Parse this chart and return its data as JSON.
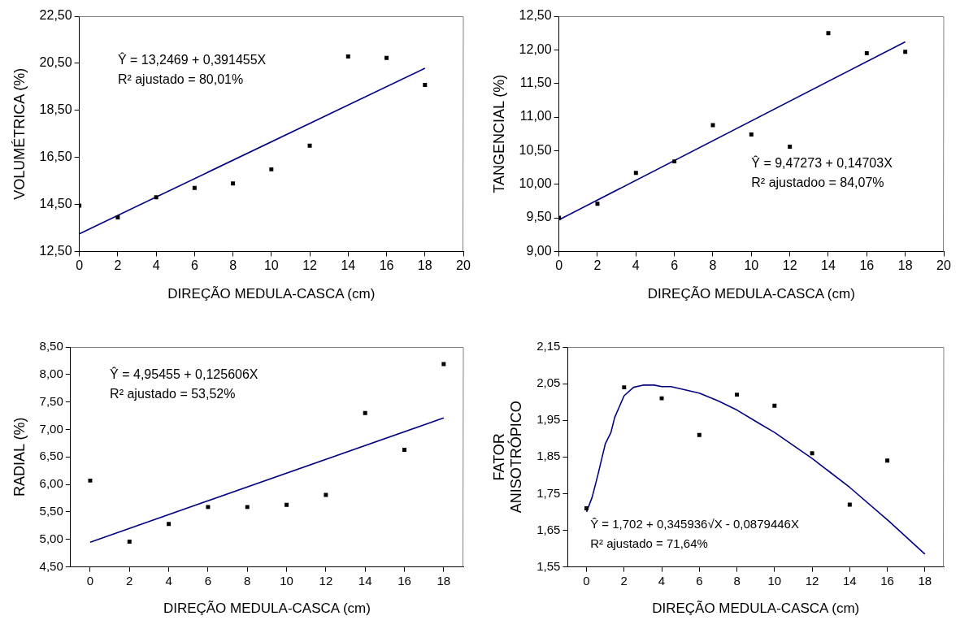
{
  "chart_data": [
    {
      "type": "scatter",
      "xlabel": "DIREÇÃO MEDULA-CASCA (cm)",
      "ylabel": "VOLUMÉTRICA (%)",
      "x": [
        0,
        2,
        4,
        6,
        8,
        10,
        12,
        14,
        16,
        18
      ],
      "xlim": [
        0,
        20
      ],
      "xticks": [
        0,
        2,
        4,
        6,
        8,
        10,
        12,
        14,
        16,
        18,
        20
      ],
      "ylim": [
        12.5,
        22.5
      ],
      "yticks": [
        {
          "value": 12.5,
          "label": "12,50"
        },
        {
          "value": 14.5,
          "label": "14,50"
        },
        {
          "value": 16.5,
          "label": "16,50"
        },
        {
          "value": 18.5,
          "label": "18,50"
        },
        {
          "value": 20.5,
          "label": "20,50"
        },
        {
          "value": 22.5,
          "label": "22,50"
        }
      ],
      "marker": "square",
      "grid": false,
      "legend": false,
      "series": [
        {
          "color": "#000000",
          "values": [
            14.45,
            13.95,
            14.8,
            15.2,
            15.39,
            15.99,
            17.0,
            20.79,
            20.73,
            19.58
          ]
        },
        {
          "type": "line",
          "color": "#000080",
          "x": [
            0,
            18
          ],
          "values": [
            13.25,
            20.29
          ],
          "marker": "none"
        }
      ],
      "annotations": [
        "Ŷ = 13,2469 + 0,391455X",
        "R² ajustado = 80,01%"
      ]
    },
    {
      "type": "scatter",
      "xlabel": "DIREÇÃO MEDULA-CASCA (cm)",
      "ylabel": "TANGENCIAL (%)",
      "x": [
        0,
        2,
        4,
        6,
        8,
        10,
        12,
        14,
        16,
        18
      ],
      "xlim": [
        0,
        20
      ],
      "xticks": [
        0,
        2,
        4,
        6,
        8,
        10,
        12,
        14,
        16,
        18,
        20
      ],
      "ylim": [
        9,
        12.5
      ],
      "yticks": [
        {
          "value": 9,
          "label": "9,00"
        },
        {
          "value": 9.5,
          "label": "9,50"
        },
        {
          "value": 10,
          "label": "10,00"
        },
        {
          "value": 10.5,
          "label": "10,50"
        },
        {
          "value": 11,
          "label": "11,00"
        },
        {
          "value": 11.5,
          "label": "11,50"
        },
        {
          "value": 12,
          "label": "12,00"
        },
        {
          "value": 12.5,
          "label": "12,50"
        }
      ],
      "marker": "square",
      "grid": false,
      "legend": false,
      "series": [
        {
          "color": "#000000",
          "values": [
            9.5,
            9.71,
            10.17,
            10.34,
            10.88,
            10.74,
            10.56,
            12.25,
            11.95,
            11.97
          ]
        },
        {
          "type": "line",
          "color": "#000080",
          "x": [
            0,
            18
          ],
          "values": [
            9.47,
            12.12
          ],
          "marker": "none"
        }
      ],
      "annotations": [
        "Ŷ = 9,47273 + 0,14703X",
        "R² ajustadoo = 84,07%"
      ]
    },
    {
      "type": "scatter",
      "xlabel": "DIREÇÃO MEDULA-CASCA (cm)",
      "ylabel": "RADIAL (%)",
      "x": [
        0,
        2,
        4,
        6,
        8,
        10,
        12,
        14,
        16,
        18
      ],
      "xlim": [
        -1,
        19
      ],
      "xticks": [
        0,
        2,
        4,
        6,
        8,
        10,
        12,
        14,
        16,
        18
      ],
      "ylim": [
        4.5,
        8.5
      ],
      "yticks": [
        {
          "value": 4.5,
          "label": "4,50"
        },
        {
          "value": 5,
          "label": "5,00"
        },
        {
          "value": 5.5,
          "label": "5,50"
        },
        {
          "value": 6,
          "label": "6,00"
        },
        {
          "value": 6.5,
          "label": "6,50"
        },
        {
          "value": 7,
          "label": "7,00"
        },
        {
          "value": 7.5,
          "label": "7,50"
        },
        {
          "value": 8,
          "label": "8,00"
        },
        {
          "value": 8.5,
          "label": "8,50"
        }
      ],
      "marker": "square",
      "grid": false,
      "legend": false,
      "series": [
        {
          "color": "#000000",
          "values": [
            6.07,
            4.96,
            5.28,
            5.59,
            5.59,
            5.63,
            5.81,
            7.3,
            6.63,
            8.19
          ]
        },
        {
          "type": "line",
          "color": "#000080",
          "x": [
            0,
            18
          ],
          "values": [
            4.95,
            7.21
          ],
          "marker": "none"
        }
      ],
      "annotations": [
        "Ŷ = 4,95455 + 0,125606X",
        "R² ajustado = 53,52%"
      ]
    },
    {
      "type": "scatter",
      "xlabel": "DIREÇÃO MEDULA-CASCA (cm)",
      "ylabel": "FATOR ANISOTRÓPICO",
      "x": [
        0,
        2,
        4,
        6,
        8,
        10,
        12,
        14,
        16
      ],
      "xlim": [
        -1,
        19
      ],
      "xticks": [
        0,
        2,
        4,
        6,
        8,
        10,
        12,
        14,
        16,
        18
      ],
      "ylim": [
        1.55,
        2.15
      ],
      "yticks": [
        {
          "value": 1.55,
          "label": "1,55"
        },
        {
          "value": 1.65,
          "label": "1,65"
        },
        {
          "value": 1.75,
          "label": "1,75"
        },
        {
          "value": 1.85,
          "label": "1,85"
        },
        {
          "value": 1.95,
          "label": "1,95"
        },
        {
          "value": 2.05,
          "label": "2,05"
        },
        {
          "value": 2.15,
          "label": "2,15"
        }
      ],
      "marker": "square",
      "grid": false,
      "legend": false,
      "series": [
        {
          "color": "#000000",
          "values": [
            1.71,
            2.04,
            2.01,
            1.91,
            2.02,
            1.99,
            1.86,
            1.72,
            1.84
          ]
        },
        {
          "type": "line",
          "color": "#000080",
          "x": [
            0,
            0.3,
            0.6,
            1,
            1.3,
            1.5,
            2,
            2.5,
            3,
            3.6,
            4,
            4.5,
            6,
            7,
            8,
            9.2,
            10,
            12,
            14,
            16.1,
            18
          ],
          "values": [
            1.7,
            1.74,
            1.8,
            1.886,
            1.917,
            1.958,
            2.017,
            2.04,
            2.046,
            2.046,
            2.042,
            2.042,
            2.024,
            2.003,
            1.978,
            1.941,
            1.917,
            1.846,
            1.767,
            1.674,
            1.585
          ],
          "marker": "none"
        }
      ],
      "annotations": [
        "Ŷ = 1,702 + 0,345936√X - 0,0879446X",
        "R² ajustado = 71,64%"
      ]
    }
  ]
}
